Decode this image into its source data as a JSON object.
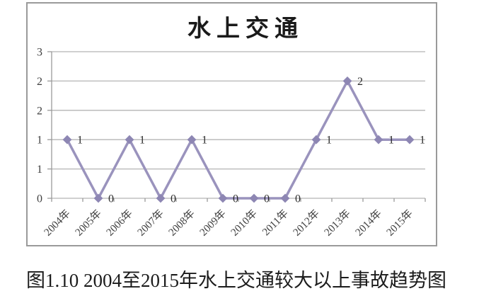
{
  "figure": {
    "caption": "图1.10 2004至2015年水上交通较大以上事故趋势图"
  },
  "chart_data": {
    "type": "line",
    "title": "水上交通",
    "categories": [
      "2004年",
      "2005年",
      "2006年",
      "2007年",
      "2008年",
      "2009年",
      "2010年",
      "2011年",
      "2012年",
      "2013年",
      "2014年",
      "2015年"
    ],
    "series": [
      {
        "name": "水上交通",
        "values": [
          1,
          0,
          1,
          0,
          1,
          0,
          0,
          0,
          1,
          2,
          1,
          1
        ]
      }
    ],
    "data_labels": [
      "1",
      "0",
      "1",
      "0",
      "1",
      "0",
      "0",
      "0",
      "1",
      "2",
      "1",
      "1"
    ],
    "xlabel": "",
    "ylabel": "",
    "y_axis": {
      "min": 0,
      "max": 2.5,
      "tick_step": 0.5,
      "tick_labels_top_to_bottom": [
        "3",
        "2",
        "2",
        "1",
        "1",
        "0"
      ]
    },
    "grid": true,
    "legend_position": "none",
    "marker": "diamond",
    "colors": {
      "line": "#9a93bd",
      "marker": "#8d86b3",
      "gridline": "#b5b5b5",
      "axis": "#9a9a9a",
      "text": "#3f3f3f"
    }
  }
}
